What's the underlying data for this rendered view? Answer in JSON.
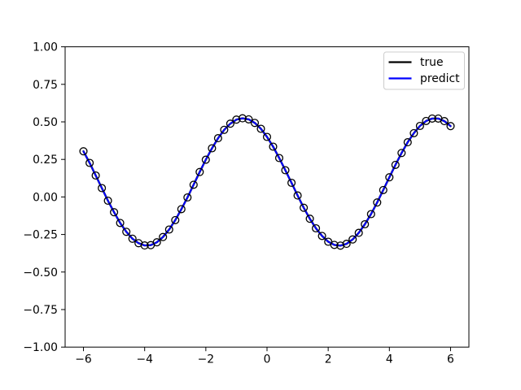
{
  "chart_data": {
    "type": "line",
    "xlim": [
      -6.6,
      6.6
    ],
    "ylim": [
      -1.0,
      1.0
    ],
    "grid": false,
    "x_ticks": [
      -6,
      -4,
      -2,
      0,
      2,
      4,
      6
    ],
    "x_tick_labels": [
      "−6",
      "−4",
      "−2",
      "0",
      "2",
      "4",
      "6"
    ],
    "y_ticks": [
      1.0,
      0.75,
      0.5,
      0.25,
      0.0,
      -0.25,
      -0.5,
      -0.75,
      -1.0
    ],
    "y_tick_labels": [
      "1.00",
      "0.75",
      "0.50",
      "0.25",
      "0.00",
      "−0.25",
      "−0.50",
      "−0.75",
      "−1.00"
    ],
    "legend": {
      "position": "upper right",
      "entries": [
        {
          "label": "true",
          "color": "#000000"
        },
        {
          "label": "predict",
          "color": "#0000ff"
        }
      ]
    },
    "x": [
      -6,
      -5.8,
      -5.6,
      -5.4,
      -5.2,
      -5,
      -4.8,
      -4.6,
      -4.4,
      -4.2,
      -4,
      -3.8,
      -3.6,
      -3.4,
      -3.2,
      -3,
      -2.8,
      -2.6,
      -2.4,
      -2.2,
      -2,
      -1.8,
      -1.6,
      -1.4,
      -1.2,
      -1,
      -0.8,
      -0.6,
      -0.4,
      -0.2,
      0,
      0.2,
      0.4,
      0.6,
      0.8,
      1,
      1.2,
      1.4,
      1.6,
      1.8,
      2,
      2.2,
      2.4,
      2.6,
      2.8,
      3,
      3.2,
      3.4,
      3.6,
      3.8,
      4,
      4.2,
      4.4,
      4.6,
      4.8,
      5,
      5.2,
      5.4,
      5.6,
      5.8,
      6
    ],
    "series": [
      {
        "name": "true",
        "color": "#000000",
        "marker": "circle-open",
        "marker_color": "#000000",
        "values": [
          0.304,
          0.227,
          0.143,
          0.059,
          -0.025,
          -0.102,
          -0.173,
          -0.232,
          -0.278,
          -0.308,
          -0.323,
          -0.321,
          -0.302,
          -0.267,
          -0.217,
          -0.154,
          -0.081,
          -0.003,
          0.081,
          0.166,
          0.248,
          0.324,
          0.391,
          0.447,
          0.488,
          0.515,
          0.524,
          0.517,
          0.493,
          0.454,
          0.4,
          0.335,
          0.259,
          0.178,
          0.094,
          0.01,
          -0.072,
          -0.145,
          -0.209,
          -0.26,
          -0.298,
          -0.319,
          -0.324,
          -0.312,
          -0.283,
          -0.239,
          -0.182,
          -0.114,
          -0.037,
          0.046,
          0.131,
          0.214,
          0.293,
          0.364,
          0.425,
          0.473,
          0.506,
          0.522,
          0.522,
          0.505,
          0.472
        ]
      },
      {
        "name": "predict",
        "color": "#0000ff",
        "marker": "none",
        "values": [
          0.304,
          0.227,
          0.143,
          0.059,
          -0.025,
          -0.102,
          -0.173,
          -0.232,
          -0.278,
          -0.308,
          -0.323,
          -0.321,
          -0.302,
          -0.267,
          -0.217,
          -0.154,
          -0.081,
          -0.003,
          0.081,
          0.166,
          0.248,
          0.324,
          0.391,
          0.447,
          0.488,
          0.515,
          0.524,
          0.517,
          0.493,
          0.454,
          0.4,
          0.335,
          0.259,
          0.178,
          0.094,
          0.01,
          -0.072,
          -0.145,
          -0.209,
          -0.26,
          -0.298,
          -0.319,
          -0.324,
          -0.312,
          -0.283,
          -0.239,
          -0.182,
          -0.114,
          -0.037,
          0.046,
          0.131,
          0.214,
          0.293,
          0.364,
          0.425,
          0.473,
          0.506,
          0.522,
          0.522,
          0.505,
          0.472
        ]
      }
    ],
    "colors": {
      "true_line": "#000000",
      "predict_line": "#0000ff",
      "legend_border": "#cccccc",
      "background": "#ffffff"
    }
  }
}
